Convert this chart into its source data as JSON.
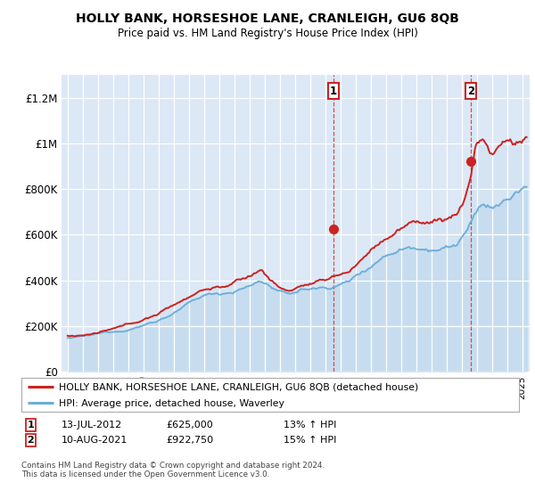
{
  "title": "HOLLY BANK, HORSESHOE LANE, CRANLEIGH, GU6 8QB",
  "subtitle": "Price paid vs. HM Land Registry's House Price Index (HPI)",
  "ylabel_ticks": [
    "£0",
    "£200K",
    "£400K",
    "£600K",
    "£800K",
    "£1M",
    "£1.2M"
  ],
  "ytick_values": [
    0,
    200000,
    400000,
    600000,
    800000,
    1000000,
    1200000
  ],
  "ylim": [
    0,
    1300000
  ],
  "xlim_start": 1994.6,
  "xlim_end": 2025.5,
  "chart_bg_color": "#dce8f5",
  "hpi_color": "#6baed6",
  "price_color": "#cc2222",
  "fill_between_color": "#c8dff0",
  "sale1_x": 2012.54,
  "sale1_y": 625000,
  "sale2_x": 2021.61,
  "sale2_y": 922750,
  "legend_line1": "HOLLY BANK, HORSESHOE LANE, CRANLEIGH, GU6 8QB (detached house)",
  "legend_line2": "HPI: Average price, detached house, Waverley",
  "annotation1_date": "13-JUL-2012",
  "annotation1_price": "£625,000",
  "annotation1_hpi": "13% ↑ HPI",
  "annotation2_date": "10-AUG-2021",
  "annotation2_price": "£922,750",
  "annotation2_hpi": "15% ↑ HPI",
  "footer": "Contains HM Land Registry data © Crown copyright and database right 2024.\nThis data is licensed under the Open Government Licence v3.0."
}
